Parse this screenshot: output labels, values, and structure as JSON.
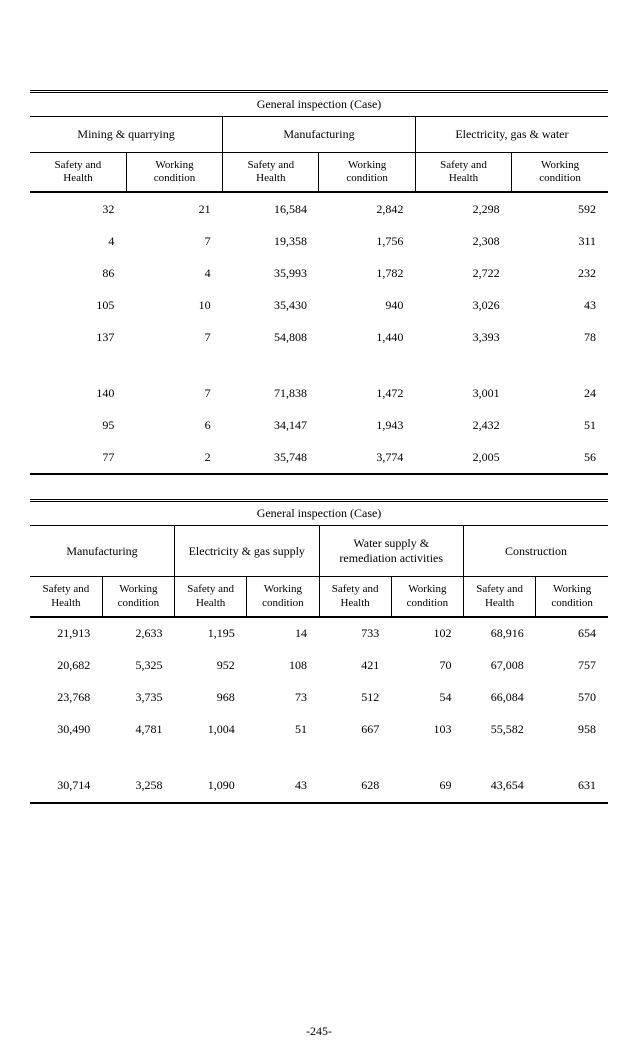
{
  "page_number": "-245-",
  "table1": {
    "title": "General  inspection   (Case)",
    "groups": [
      "Mining & quarrying",
      "Manufacturing",
      "Electricity, gas & water"
    ],
    "sub_headers": [
      "Safety and Health",
      "Working condition",
      "Safety and Health",
      "Working condition",
      "Safety and Health",
      "Working condition"
    ],
    "rows": [
      [
        "32",
        "21",
        "16,584",
        "2,842",
        "2,298",
        "592"
      ],
      [
        "4",
        "7",
        "19,358",
        "1,756",
        "2,308",
        "311"
      ],
      [
        "86",
        "4",
        "35,993",
        "1,782",
        "2,722",
        "232"
      ],
      [
        "105",
        "10",
        "35,430",
        "940",
        "3,026",
        "43"
      ],
      [
        "137",
        "7",
        "54,808",
        "1,440",
        "3,393",
        "78"
      ]
    ],
    "rows2": [
      [
        "140",
        "7",
        "71,838",
        "1,472",
        "3,001",
        "24"
      ],
      [
        "95",
        "6",
        "34,147",
        "1,943",
        "2,432",
        "51"
      ],
      [
        "77",
        "2",
        "35,748",
        "3,774",
        "2,005",
        "56"
      ]
    ]
  },
  "table2": {
    "title": "General  inspection   (Case)",
    "groups": [
      "Manufacturing",
      "Electricity & gas supply",
      "Water supply & remediation activities",
      "Construction"
    ],
    "sub_headers": [
      "Safety and Health",
      "Working condition",
      "Safety and Health",
      "Working condition",
      "Safety and Health",
      "Working condition",
      "Safety and Health",
      "Working condition"
    ],
    "rows": [
      [
        "21,913",
        "2,633",
        "1,195",
        "14",
        "733",
        "102",
        "68,916",
        "654"
      ],
      [
        "20,682",
        "5,325",
        "952",
        "108",
        "421",
        "70",
        "67,008",
        "757"
      ],
      [
        "23,768",
        "3,735",
        "968",
        "73",
        "512",
        "54",
        "66,084",
        "570"
      ],
      [
        "30,490",
        "4,781",
        "1,004",
        "51",
        "667",
        "103",
        "55,582",
        "958"
      ]
    ],
    "rows2": [
      [
        "30,714",
        "3,258",
        "1,090",
        "43",
        "628",
        "69",
        "43,654",
        "631"
      ]
    ]
  }
}
